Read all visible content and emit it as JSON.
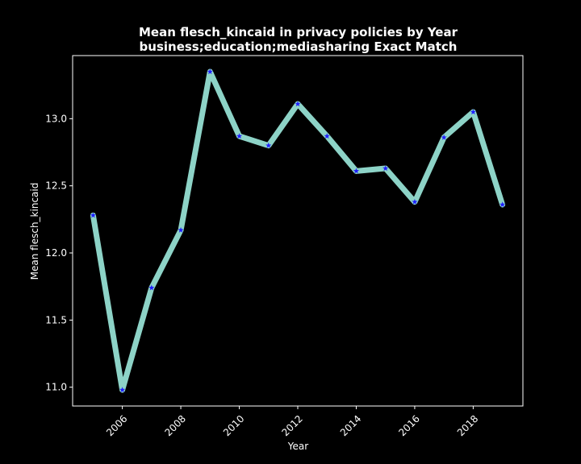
{
  "chart_data": {
    "type": "line",
    "title": "Mean flesch_kincaid in privacy policies by Year",
    "subtitle": "business;education;mediasharing Exact Match",
    "xlabel": "Year",
    "ylabel": "Mean flesch_kincaid",
    "x": [
      2005,
      2006,
      2007,
      2008,
      2009,
      2010,
      2011,
      2012,
      2013,
      2014,
      2015,
      2016,
      2017,
      2018,
      2019
    ],
    "series": [
      {
        "values": [
          12.28,
          10.98,
          11.74,
          12.17,
          13.35,
          12.87,
          12.8,
          13.11,
          12.87,
          12.61,
          12.63,
          12.38,
          12.86,
          13.05,
          12.36
        ]
      }
    ],
    "xlim": [
      2004.3,
      2019.7
    ],
    "ylim": [
      10.86,
      13.47
    ],
    "xticks": [
      2006,
      2008,
      2010,
      2012,
      2014,
      2016,
      2018
    ],
    "yticks": [
      "11.0",
      "11.5",
      "12.0",
      "12.5",
      "13.0"
    ],
    "grid": false,
    "legend": "none",
    "colors": {
      "background": "#000000",
      "line": "#8dd3c7",
      "marker": "#1f1fff",
      "text": "#ffffff"
    }
  }
}
